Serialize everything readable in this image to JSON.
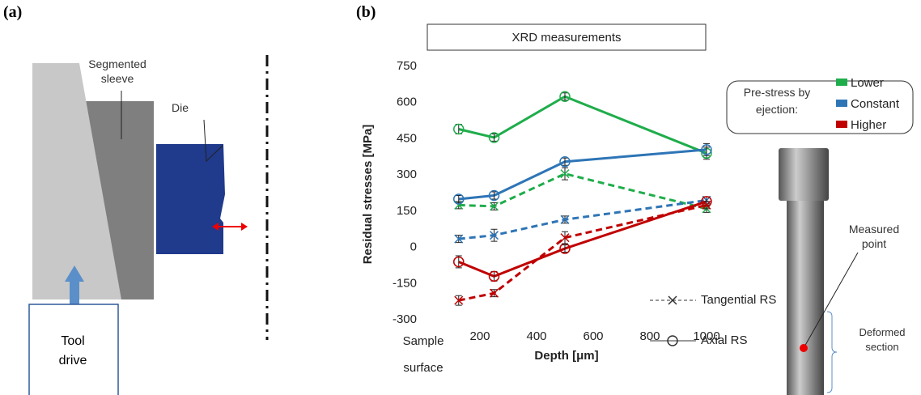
{
  "panel_a": {
    "label": "(a)",
    "sleeve": "Segmented sleeve",
    "die": "Die",
    "tool": "Tool drive"
  },
  "photo": {
    "point": "Measured point",
    "section": "Deformed section"
  },
  "chart_data": {
    "type": "line",
    "label": "(b)",
    "title": "XRD measurements",
    "y_label": "Residual stresses [MPa]",
    "x_label": "Depth [μm]",
    "x": [
      125,
      250,
      500,
      1000
    ],
    "xlim": [
      0,
      1000
    ],
    "xticks": [
      {
        "value": 0,
        "label": "Sample surface"
      },
      200,
      400,
      600,
      800,
      1000
    ],
    "ylim": [
      -300,
      750
    ],
    "yticks": [
      -300,
      -150,
      0,
      150,
      300,
      450,
      600,
      750
    ],
    "legend_title": "Pre-stress by ejection:",
    "measures": [
      {
        "name": "Axial RS",
        "dash": "solid",
        "marker": "circle"
      },
      {
        "name": "Tangential RS",
        "dash": "dashed",
        "marker": "x"
      }
    ],
    "series": [
      {
        "name": "Lower",
        "color": "#1fad4b",
        "measures": [
          {
            "values": [
              490,
              455,
              625,
              390
            ],
            "errors": [
              20,
              15,
              15,
              25
            ]
          },
          {
            "values": [
              175,
              170,
              305,
              160
            ],
            "errors": [
              15,
              15,
              25,
              15
            ]
          }
        ]
      },
      {
        "name": "Constant",
        "color": "#2e75b6",
        "measures": [
          {
            "values": [
              200,
              215,
              355,
              405
            ],
            "errors": [
              15,
              15,
              15,
              25
            ]
          },
          {
            "values": [
              35,
              50,
              115,
              195
            ],
            "errors": [
              15,
              25,
              15,
              15
            ]
          }
        ]
      },
      {
        "name": "Higher",
        "color": "#c00000",
        "measures": [
          {
            "values": [
              -60,
              -120,
              -5,
              190
            ],
            "errors": [
              25,
              20,
              15,
              20
            ]
          },
          {
            "values": [
              -220,
              -190,
              40,
              175
            ],
            "errors": [
              20,
              15,
              25,
              15
            ]
          }
        ]
      }
    ]
  }
}
